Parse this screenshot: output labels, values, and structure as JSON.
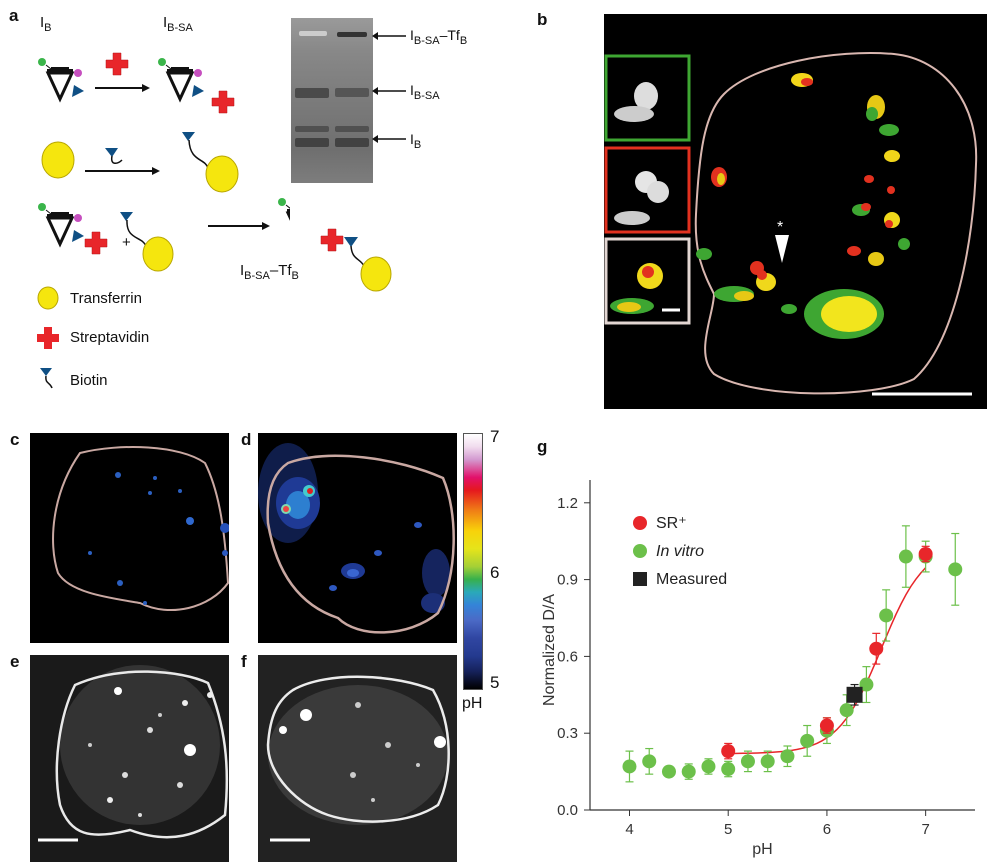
{
  "panels": {
    "a": {
      "label": "a",
      "scheme_labels": {
        "ib": "I",
        "ib_sub": "B",
        "ibsa": "I",
        "ibsa_sub": "B-SA",
        "plus": "+",
        "product": "I",
        "product_sub": "B-SA",
        "product_dash": "–Tf",
        "product_sub2": "B"
      },
      "legend": [
        {
          "name": "Transferrin",
          "icon": "yellow-circle-icon"
        },
        {
          "name": "Streptavidin",
          "icon": "red-cross-icon"
        },
        {
          "name": "Biotin",
          "icon": "biotin-icon"
        }
      ],
      "gel_labels": [
        {
          "main": "I",
          "sub": "B-SA",
          "tail": "–Tf",
          "tail_sub": "B"
        },
        {
          "main": "I",
          "sub": "B-SA",
          "tail": "",
          "tail_sub": ""
        },
        {
          "main": "I",
          "sub": "B",
          "tail": "",
          "tail_sub": ""
        }
      ]
    },
    "b": {
      "label": "b",
      "marker": "*"
    },
    "c": {
      "label": "c"
    },
    "d": {
      "label": "d"
    },
    "e": {
      "label": "e"
    },
    "f": {
      "label": "f"
    },
    "colorbar": {
      "ticks": [
        "7",
        "6",
        "5"
      ],
      "unit": "pH"
    },
    "g": {
      "label": "g"
    }
  },
  "colors": {
    "red": "#e8262a",
    "green": "#6cc04a",
    "yellow": "#f7e11a",
    "blue": "#1e5fa8"
  },
  "chart_data": {
    "type": "scatter",
    "xlabel": "pH",
    "ylabel": "Normalized D/A",
    "xlim": [
      3.6,
      7.5
    ],
    "ylim": [
      0.0,
      1.25
    ],
    "xticks": [
      4,
      5,
      6,
      7
    ],
    "yticks": [
      0.0,
      0.3,
      0.6,
      0.9,
      1.2
    ],
    "ytick_labels": [
      "0.0",
      "0.3",
      "0.6",
      "0.9",
      "1.2"
    ],
    "legend_position": "top-left",
    "series": [
      {
        "name": "SR⁺",
        "color": "#e8262a",
        "points": [
          {
            "x": 5.0,
            "y": 0.23,
            "err": 0.03
          },
          {
            "x": 6.0,
            "y": 0.33,
            "err": 0.03
          },
          {
            "x": 6.5,
            "y": 0.63,
            "err": 0.06
          },
          {
            "x": 7.0,
            "y": 1.0,
            "err": 0.03
          }
        ]
      },
      {
        "name": "In vitro",
        "color": "#6cc04a",
        "points": [
          {
            "x": 4.0,
            "y": 0.17,
            "err": 0.06
          },
          {
            "x": 4.2,
            "y": 0.19,
            "err": 0.05
          },
          {
            "x": 4.4,
            "y": 0.15,
            "err": 0.02
          },
          {
            "x": 4.6,
            "y": 0.15,
            "err": 0.03
          },
          {
            "x": 4.8,
            "y": 0.17,
            "err": 0.03
          },
          {
            "x": 5.0,
            "y": 0.16,
            "err": 0.03
          },
          {
            "x": 5.2,
            "y": 0.19,
            "err": 0.04
          },
          {
            "x": 5.4,
            "y": 0.19,
            "err": 0.04
          },
          {
            "x": 5.6,
            "y": 0.21,
            "err": 0.04
          },
          {
            "x": 5.8,
            "y": 0.27,
            "err": 0.06
          },
          {
            "x": 6.0,
            "y": 0.31,
            "err": 0.05
          },
          {
            "x": 6.2,
            "y": 0.39,
            "err": 0.06
          },
          {
            "x": 6.4,
            "y": 0.49,
            "err": 0.07
          },
          {
            "x": 6.6,
            "y": 0.76,
            "err": 0.1
          },
          {
            "x": 6.8,
            "y": 0.99,
            "err": 0.12
          },
          {
            "x": 7.0,
            "y": 0.99,
            "err": 0.06
          },
          {
            "x": 7.3,
            "y": 0.94,
            "err": 0.14
          }
        ]
      },
      {
        "name": "Measured",
        "color": "#222222",
        "points": [
          {
            "x": 6.28,
            "y": 0.45,
            "err": 0.04
          }
        ]
      }
    ],
    "fit_curve_color": "#e8262a"
  }
}
